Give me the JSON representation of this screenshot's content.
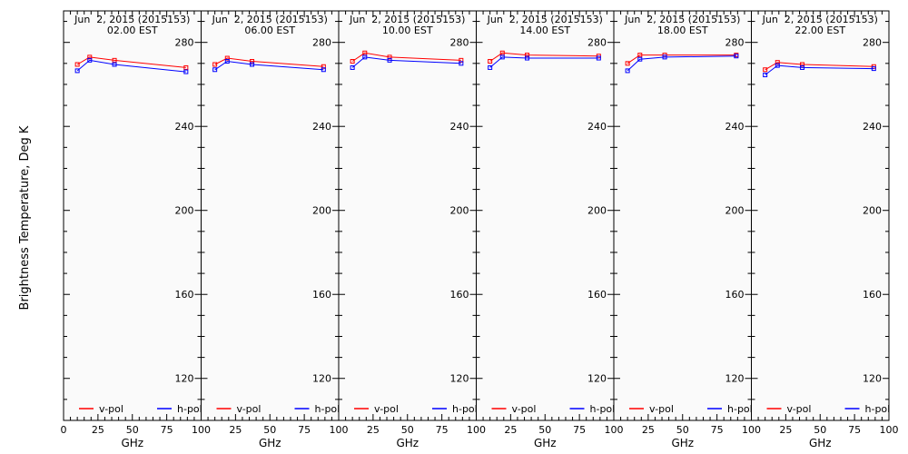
{
  "chart_data": {
    "type": "line",
    "ylabel": "Brightness Temperature, Deg K",
    "xlabel": "GHz",
    "xlim": [
      0,
      100
    ],
    "ylim": [
      100,
      295
    ],
    "x_ticks": [
      0,
      25,
      50,
      75,
      100
    ],
    "y_ticks": [
      120,
      160,
      200,
      240,
      280
    ],
    "legend": [
      "v-pol",
      "h-pol"
    ],
    "legend_position": "bottom",
    "series_colors": {
      "v-pol": "#ff0000",
      "h-pol": "#0000ff"
    },
    "panels": [
      {
        "date": "Jun  2, 2015 (2015153)",
        "time": "02.00 EST",
        "x": [
          10,
          19,
          37,
          89
        ],
        "series": [
          {
            "name": "v-pol",
            "values": [
              269.5,
              273.0,
              271.5,
              268.0
            ]
          },
          {
            "name": "h-pol",
            "values": [
              266.5,
              271.5,
              269.5,
              266.0
            ]
          }
        ]
      },
      {
        "date": "Jun  2, 2015 (2015153)",
        "time": "06.00 EST",
        "x": [
          10,
          19,
          37,
          89
        ],
        "series": [
          {
            "name": "v-pol",
            "values": [
              269.5,
              272.5,
              271.0,
              268.5
            ]
          },
          {
            "name": "h-pol",
            "values": [
              267.0,
              271.0,
              269.5,
              267.0
            ]
          }
        ]
      },
      {
        "date": "Jun  2, 2015 (2015153)",
        "time": "10.00 EST",
        "x": [
          10,
          19,
          37,
          89
        ],
        "series": [
          {
            "name": "v-pol",
            "values": [
              271.0,
              275.0,
              273.0,
              271.5
            ]
          },
          {
            "name": "h-pol",
            "values": [
              268.0,
              273.0,
              271.5,
              270.0
            ]
          }
        ]
      },
      {
        "date": "Jun  2, 2015 (2015153)",
        "time": "14.00 EST",
        "x": [
          10,
          19,
          37,
          89
        ],
        "series": [
          {
            "name": "v-pol",
            "values": [
              271.0,
              275.0,
              274.0,
              273.5
            ]
          },
          {
            "name": "h-pol",
            "values": [
              268.0,
              273.0,
              272.5,
              272.5
            ]
          }
        ]
      },
      {
        "date": "Jun  2, 2015 (2015153)",
        "time": "18.00 EST",
        "x": [
          10,
          19,
          37,
          89
        ],
        "series": [
          {
            "name": "v-pol",
            "values": [
              270.0,
              274.0,
              274.0,
              274.0
            ]
          },
          {
            "name": "h-pol",
            "values": [
              266.5,
              272.0,
              273.0,
              273.5
            ]
          }
        ]
      },
      {
        "date": "Jun  2, 2015 (2015153)",
        "time": "22.00 EST",
        "x": [
          10,
          19,
          37,
          89
        ],
        "series": [
          {
            "name": "v-pol",
            "values": [
              267.0,
              270.5,
              269.5,
              268.5
            ]
          },
          {
            "name": "h-pol",
            "values": [
              264.5,
              269.0,
              268.0,
              267.5
            ]
          }
        ]
      }
    ]
  }
}
